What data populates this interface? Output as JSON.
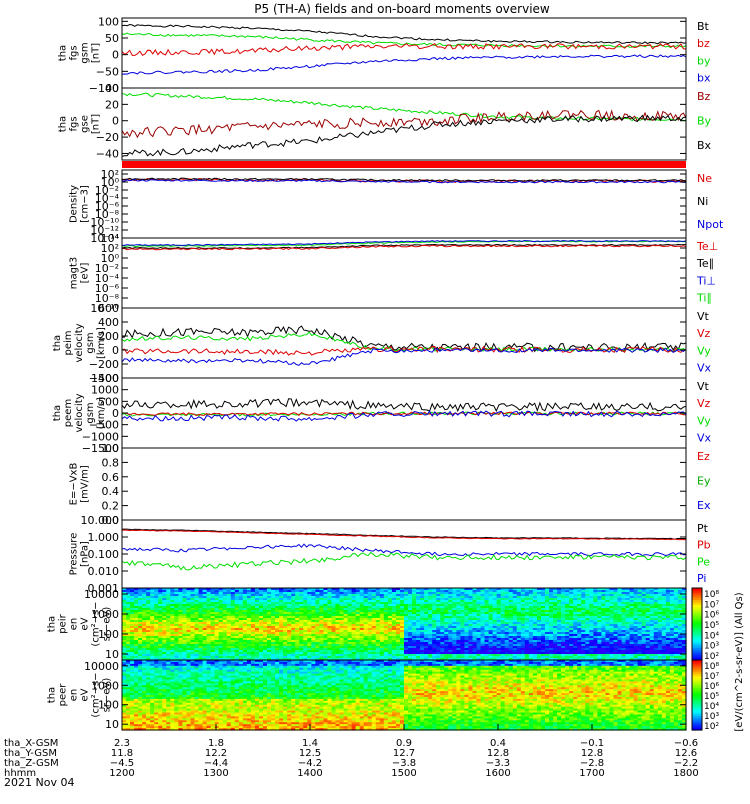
{
  "title": "P5 (TH-A) fields and on-board moments overview",
  "date_label": "2021 Nov 04",
  "colors": {
    "black": "#000000",
    "red": "#dd0000",
    "green": "#00dd00",
    "blue": "#0000dd",
    "darkred": "#990000",
    "bar": "#ff0000"
  },
  "chart_data": [
    {
      "type": "line",
      "id": "fgs_gsm",
      "ylabel": [
        "tha",
        "fgs",
        "gsm",
        "[nT]"
      ],
      "ylim": [
        -100,
        110
      ],
      "yticks": [
        "100",
        "50",
        "0",
        "−50",
        "−100"
      ],
      "ytick_values": [
        100,
        50,
        0,
        -50,
        -100
      ],
      "legend": [
        "Bt",
        "bz",
        "by",
        "bx"
      ],
      "series": [
        {
          "name": "Bt",
          "color": "black",
          "level": [
            88,
            85,
            80,
            70,
            55,
            45,
            40,
            38,
            36,
            35
          ],
          "noise": 3
        },
        {
          "name": "by",
          "color": "green",
          "level": [
            62,
            58,
            55,
            45,
            35,
            30,
            28,
            26,
            25,
            25
          ],
          "noise": 4
        },
        {
          "name": "bz",
          "color": "red",
          "level": [
            5,
            8,
            10,
            20,
            25,
            25,
            25,
            25,
            25,
            25
          ],
          "noise": 8
        },
        {
          "name": "bx",
          "color": "blue",
          "level": [
            -55,
            -52,
            -48,
            -35,
            -20,
            -12,
            -8,
            -5,
            -5,
            -5
          ],
          "noise": 4
        }
      ]
    },
    {
      "type": "line",
      "id": "fgs_gse",
      "ylabel": [
        "tha",
        "fgs",
        "gse",
        "[nT]"
      ],
      "ylim": [
        -48,
        40
      ],
      "yticks": [
        "40",
        "20",
        "0",
        "−20",
        "−40"
      ],
      "ytick_values": [
        40,
        20,
        0,
        -20,
        -40
      ],
      "legend": [
        "Bz",
        "By",
        "Bx"
      ],
      "series": [
        {
          "name": "By",
          "color": "green",
          "level": [
            33,
            30,
            27,
            22,
            15,
            10,
            5,
            3,
            2,
            2
          ],
          "noise": 2
        },
        {
          "name": "Bz",
          "color": "darkred",
          "level": [
            -15,
            -12,
            -8,
            -5,
            -2,
            0,
            5,
            8,
            6,
            5
          ],
          "noise": 6
        },
        {
          "name": "Bx",
          "color": "black",
          "level": [
            -40,
            -38,
            -30,
            -25,
            -15,
            -5,
            0,
            2,
            3,
            3
          ],
          "noise": 4
        }
      ]
    },
    {
      "type": "line",
      "id": "density",
      "scale": "log",
      "ylabel": [
        "Density",
        "[cm−3]"
      ],
      "ylim": [
        -14,
        3
      ],
      "yticks": [
        "10²",
        "10⁰",
        "10⁻²",
        "10⁻⁴",
        "10⁻⁶",
        "10⁻⁸",
        "10⁻¹⁰",
        "10⁻¹²",
        "10⁻¹⁴"
      ],
      "ytick_values": [
        2,
        0,
        -2,
        -4,
        -6,
        -8,
        -10,
        -12,
        -14
      ],
      "legend": [
        "Ne",
        "Ni",
        "Npot"
      ],
      "series": [
        {
          "name": "Ne",
          "color": "red",
          "level": [
            0.6,
            0.6,
            0.5,
            0.5,
            0.3,
            0.2,
            0.2,
            0.2,
            0.2,
            0.2
          ],
          "noise": 0.3
        },
        {
          "name": "Ni",
          "color": "black",
          "level": [
            0.8,
            0.8,
            0.7,
            0.7,
            0.5,
            0.4,
            0.4,
            0.4,
            0.4,
            0.4
          ],
          "noise": 0.2
        },
        {
          "name": "Npot",
          "color": "blue",
          "level": [
            0.4,
            0.4,
            0.3,
            0.3,
            0.1,
            0,
            0,
            0,
            0,
            0
          ],
          "noise": 0.2
        }
      ]
    },
    {
      "type": "line",
      "id": "temperature",
      "scale": "log",
      "ylabel": [
        "magt3",
        "[eV]"
      ],
      "ylim": [
        -10,
        4
      ],
      "yticks": [
        "10⁴",
        "10²",
        "10⁰",
        "10⁻²",
        "10⁻⁴",
        "10⁻⁶",
        "10⁻⁸",
        "10⁻¹⁰"
      ],
      "ytick_values": [
        4,
        2,
        0,
        -2,
        -4,
        -6,
        -8,
        -10
      ],
      "legend": [
        "Te⊥",
        "Te∥",
        "Ti⊥",
        "Ti∥"
      ],
      "series": [
        {
          "name": "Ti∥",
          "color": "green",
          "level": [
            2.4,
            2.4,
            2.5,
            2.6,
            3,
            3.2,
            3.3,
            3.3,
            3.3,
            3.3
          ],
          "noise": 0.1
        },
        {
          "name": "Ti⊥",
          "color": "blue",
          "level": [
            2.6,
            2.6,
            2.7,
            2.8,
            3.2,
            3.4,
            3.4,
            3.4,
            3.4,
            3.4
          ],
          "noise": 0.1
        },
        {
          "name": "Te∥",
          "color": "black",
          "level": [
            2,
            2,
            2,
            2.1,
            2.5,
            2.6,
            2.6,
            2.6,
            2.6,
            2.6
          ],
          "noise": 0.1
        },
        {
          "name": "Te⊥",
          "color": "red",
          "level": [
            1.8,
            1.8,
            1.8,
            1.9,
            2.3,
            2.4,
            2.4,
            2.4,
            2.4,
            2.4
          ],
          "noise": 0.15
        }
      ]
    },
    {
      "type": "line",
      "id": "peim_velocity",
      "ylabel": [
        "tha",
        "peim",
        "velocity",
        "gsm",
        "[km/s]"
      ],
      "ylim": [
        -400,
        600
      ],
      "yticks": [
        "600",
        "400",
        "200",
        "0",
        "−200",
        "−400"
      ],
      "ytick_values": [
        600,
        400,
        200,
        0,
        -200,
        -400
      ],
      "legend": [
        "Vt",
        "Vz",
        "Vy",
        "Vx"
      ],
      "series": [
        {
          "name": "Vt",
          "color": "black",
          "level": [
            220,
            260,
            250,
            300,
            60,
            40,
            40,
            40,
            40,
            40
          ],
          "noise": 60
        },
        {
          "name": "Vy",
          "color": "green",
          "level": [
            150,
            180,
            160,
            230,
            20,
            10,
            10,
            10,
            10,
            10
          ],
          "noise": 30
        },
        {
          "name": "Vz",
          "color": "red",
          "level": [
            -20,
            -10,
            -30,
            -40,
            10,
            10,
            5,
            5,
            5,
            5
          ],
          "noise": 40
        },
        {
          "name": "Vx",
          "color": "blue",
          "level": [
            -140,
            -160,
            -150,
            -200,
            -10,
            -5,
            -5,
            -5,
            -5,
            -5
          ],
          "noise": 30
        }
      ]
    },
    {
      "type": "line",
      "id": "peem_velocity",
      "ylabel": [
        "tha",
        "peem",
        "velocity",
        "gsm",
        "[km/s]"
      ],
      "ylim": [
        -1500,
        1500
      ],
      "yticks": [
        "1500",
        "1000",
        "500",
        "0",
        "−500",
        "−1000",
        "−1500"
      ],
      "ytick_values": [
        1500,
        1000,
        500,
        0,
        -500,
        -1000,
        -1500
      ],
      "legend": [
        "Vt",
        "Vz",
        "Vy",
        "Vx"
      ],
      "series": [
        {
          "name": "Vt",
          "color": "black",
          "level": [
            350,
            380,
            400,
            450,
            300,
            250,
            250,
            250,
            250,
            250
          ],
          "noise": 180
        },
        {
          "name": "Vy",
          "color": "green",
          "level": [
            -80,
            -80,
            -70,
            -60,
            -30,
            -20,
            -20,
            -20,
            -20,
            -20
          ],
          "noise": 60
        },
        {
          "name": "Vz",
          "color": "red",
          "level": [
            -50,
            -50,
            -40,
            -40,
            -20,
            -20,
            -20,
            -20,
            -20,
            -20
          ],
          "noise": 60
        },
        {
          "name": "Vx",
          "color": "blue",
          "level": [
            -200,
            -220,
            -200,
            -250,
            -60,
            -40,
            -40,
            -40,
            -40,
            -40
          ],
          "noise": 120
        }
      ]
    },
    {
      "type": "line",
      "id": "efield",
      "ylabel": [
        "E=−VxB",
        "[mV/m]"
      ],
      "ylim": [
        0,
        1
      ],
      "yticks": [
        "1.0",
        "0.8",
        "0.6",
        "0.4",
        "0.2",
        "0.0"
      ],
      "ytick_values": [
        1,
        0.8,
        0.6,
        0.4,
        0.2,
        0
      ],
      "legend": [
        "Ez",
        "Ey",
        "Ex"
      ],
      "series": []
    },
    {
      "type": "line",
      "id": "pressure",
      "scale": "log",
      "ylabel": [
        "Pressure",
        "[nPa]"
      ],
      "ylim": [
        -3,
        1
      ],
      "yticks": [
        "10.000",
        "1.000",
        "0.100",
        "0.010",
        "0.001"
      ],
      "ytick_values": [
        1,
        0,
        -1,
        -2,
        -3
      ],
      "legend": [
        "Pt",
        "Pb",
        "Pe",
        "Pi"
      ],
      "series": [
        {
          "name": "Pt",
          "color": "black",
          "level": [
            0.45,
            0.4,
            0.3,
            0.2,
            0.1,
            0,
            -0.05,
            -0.05,
            -0.08,
            -0.1
          ],
          "noise": 0.02
        },
        {
          "name": "Pb",
          "color": "red",
          "level": [
            0.4,
            0.35,
            0.25,
            0.15,
            0.05,
            -0.05,
            -0.1,
            -0.1,
            -0.12,
            -0.15
          ],
          "noise": 0.02
        },
        {
          "name": "Pi",
          "color": "blue",
          "level": [
            -0.7,
            -0.8,
            -0.6,
            -0.5,
            -0.8,
            -1,
            -1,
            -1,
            -1,
            -1
          ],
          "noise": 0.1
        },
        {
          "name": "Pe",
          "color": "green",
          "level": [
            -1.5,
            -1.8,
            -1.6,
            -1.4,
            -1,
            -1.2,
            -1.2,
            -1.2,
            -1.2,
            -1.2
          ],
          "noise": 0.15
        }
      ]
    },
    {
      "type": "heatmap",
      "id": "peir_eflux",
      "scale": "log",
      "ylabel": [
        "tha",
        "peir",
        "en",
        "eV",
        "(cm²−s−",
        "sr−eV)"
      ],
      "ylim": [
        0.7,
        4.3
      ],
      "yticks": [
        "10000",
        "1000",
        "100",
        "10"
      ],
      "ytick_values": [
        4,
        3,
        2,
        1
      ],
      "colorbar_label": "[eV/(cm^2-s-sr-eV)] (All Qs)",
      "pattern": "ion"
    },
    {
      "type": "heatmap",
      "id": "peer_eflux",
      "scale": "log",
      "ylabel": [
        "tha",
        "peer",
        "en",
        "eV",
        "(cm²−s−",
        "sr−eV)"
      ],
      "ylim": [
        0.7,
        4.3
      ],
      "yticks": [
        "10000",
        "1000",
        "100",
        "10"
      ],
      "ytick_values": [
        4,
        3,
        2,
        1
      ],
      "pattern": "electron"
    }
  ],
  "colorbar_ticks": [
    "10⁸",
    "10⁷",
    "10⁶",
    "10⁵",
    "10⁴",
    "10³",
    "10²"
  ],
  "xaxis": {
    "labels": [
      "tha_X-GSM",
      "tha_Y-GSM",
      "tha_Z-GSM",
      "hhmm"
    ],
    "ticks": [
      {
        "values": [
          "2.3",
          "11.8",
          "−4.5",
          "1200"
        ]
      },
      {
        "values": [
          "1.8",
          "12.2",
          "−4.4",
          "1300"
        ]
      },
      {
        "values": [
          "1.4",
          "12.5",
          "−4.2",
          "1400"
        ]
      },
      {
        "values": [
          "0.9",
          "12.7",
          "−3.8",
          "1500"
        ]
      },
      {
        "values": [
          "0.4",
          "12.8",
          "−3.3",
          "1600"
        ]
      },
      {
        "values": [
          "−0.1",
          "12.8",
          "−2.8",
          "1700"
        ]
      },
      {
        "values": [
          "−0.6",
          "12.6",
          "−2.2",
          "1800"
        ]
      }
    ]
  }
}
